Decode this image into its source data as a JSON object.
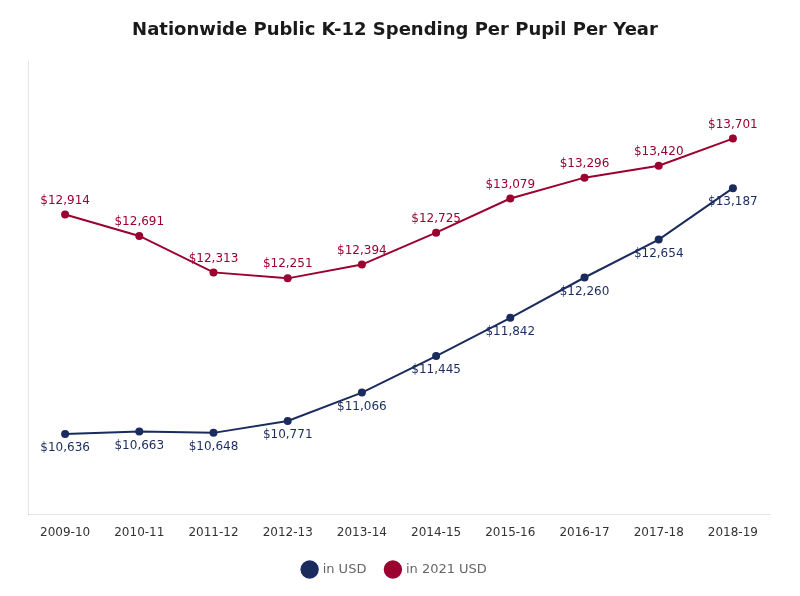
{
  "chart_data": {
    "type": "line",
    "title": "Nationwide Public K-12 Spending Per Pupil Per Year",
    "categories": [
      "2009-10",
      "2010-11",
      "2011-12",
      "2012-13",
      "2013-14",
      "2014-15",
      "2015-16",
      "2016-17",
      "2017-18",
      "2018-19"
    ],
    "series": [
      {
        "name": "in USD",
        "color": "#1a2b5e",
        "marker": "circle",
        "values": [
          10636,
          10663,
          10648,
          10771,
          11066,
          11445,
          11842,
          12260,
          12654,
          13187
        ],
        "value_labels": [
          "$10,636",
          "$10,663",
          "$10,648",
          "$10,771",
          "$11,066",
          "$11,445",
          "$11,842",
          "$12,260",
          "$12,654",
          "$13,187"
        ]
      },
      {
        "name": "in 2021 USD",
        "color": "#9b0030",
        "marker": "circle",
        "values": [
          12914,
          12691,
          12313,
          12251,
          12394,
          12725,
          13079,
          13296,
          13420,
          13701
        ],
        "value_labels": [
          "$12,914",
          "$12,691",
          "$12,313",
          "$12,251",
          "$12,394",
          "$12,725",
          "$13,079",
          "$13,296",
          "$13,420",
          "$13,701"
        ]
      }
    ],
    "ylim": [
      9800,
      14500
    ],
    "grid": false,
    "legend": "bottom",
    "data_labels": true,
    "tick_labels": "x"
  }
}
